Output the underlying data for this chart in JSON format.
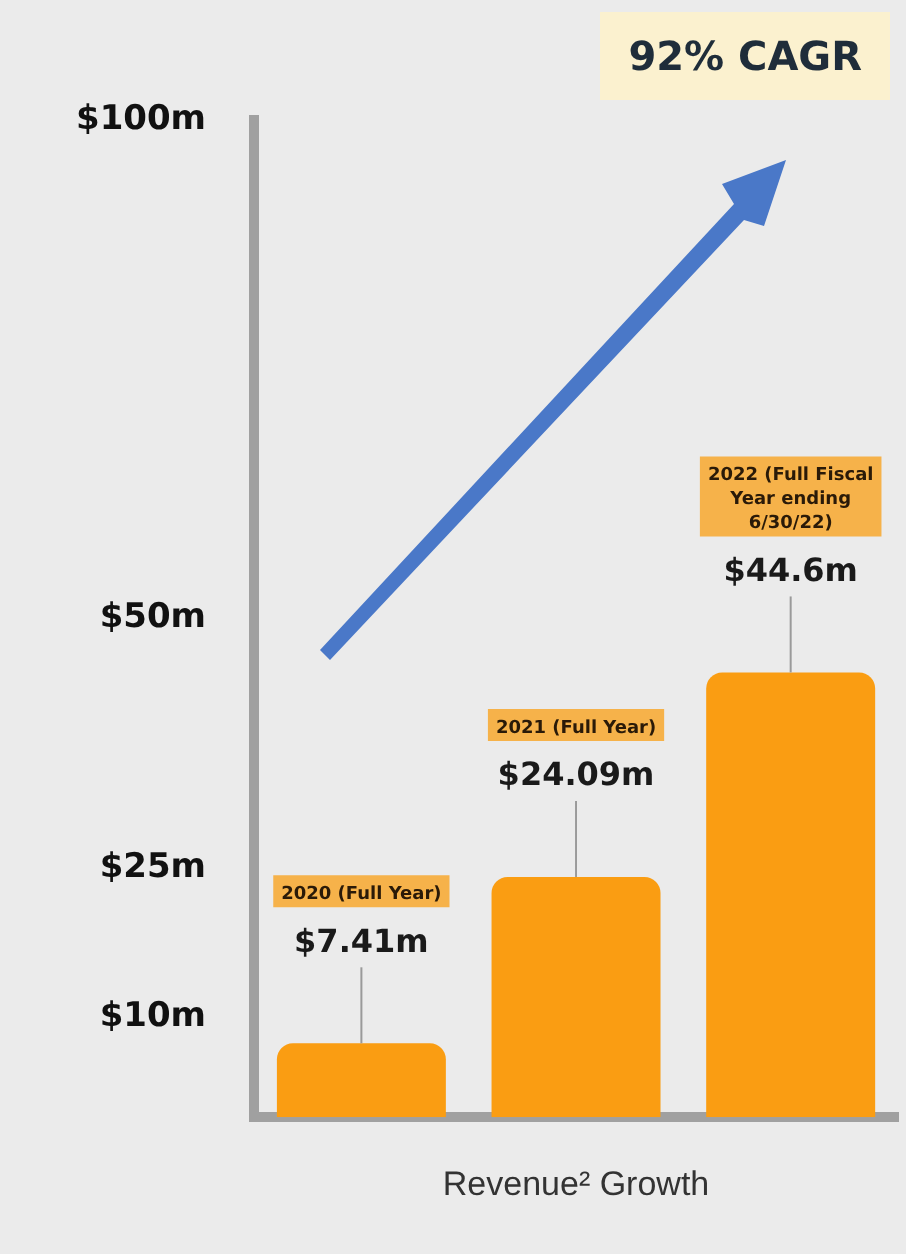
{
  "chart_data": {
    "type": "bar",
    "xlabel": "Revenue² Growth",
    "categories": [
      "2020 (Full Year)",
      "2021 (Full Year)",
      "2022 (Full Fiscal Year ending 6/30/22)"
    ],
    "values": [
      7.41,
      24.09,
      44.6
    ],
    "color": "#fa9d12",
    "value_labels": [
      "$7.41m",
      "$24.09m",
      "$44.6m"
    ],
    "ylim": [
      0,
      100
    ],
    "yticks": [
      {
        "value": 10,
        "label": "$10m"
      },
      {
        "value": 25,
        "label": "$25m"
      },
      {
        "value": 50,
        "label": "$50m"
      },
      {
        "value": 100,
        "label": "$100m"
      }
    ],
    "grid": false,
    "tick_labels": "y",
    "annotations": [
      "92% CAGR"
    ]
  }
}
